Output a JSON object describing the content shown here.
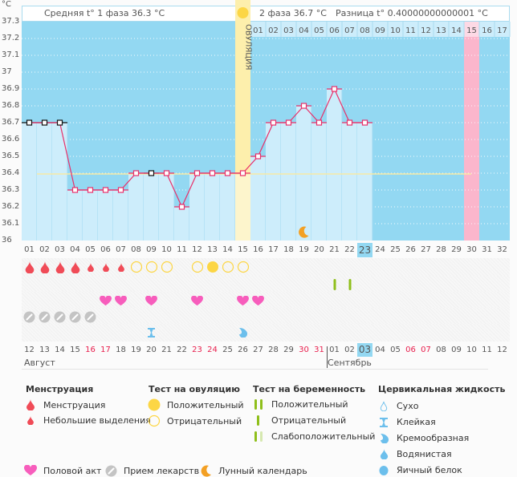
{
  "header": {
    "unit": "°C",
    "phase1_text": "Средняя t° 1 фаза 36.3 °C",
    "phase2_text": "2 фаза 36.7 °C",
    "diff_text": "Разница t° 0.40000000000001 °C",
    "ovulation_label": "ОВУЛЯЦИЯ"
  },
  "colors": {
    "bg_dark": "#93d8f2",
    "bg_light": "#cdedfb",
    "line": "#e8306a",
    "ovulation": "#fdefac",
    "pink_day": "#fbb6cc",
    "coverline": "#f6eaa6",
    "today": "#93d8f2"
  },
  "chart_data": {
    "type": "line",
    "title": "",
    "ylabel": "°C",
    "ylim": [
      36.0,
      37.3
    ],
    "yticks": [
      "37.3",
      "37.2",
      "37.1",
      "37",
      "36.9",
      "36.8",
      "36.7",
      "36.6",
      "36.5",
      "36.4",
      "36.3",
      "36.2",
      "36.1",
      "36"
    ],
    "coverline": 36.4,
    "ovulation_day": 15,
    "pink_day": 30,
    "today_day": 23,
    "cycle_days": [
      "01",
      "02",
      "03",
      "04",
      "05",
      "06",
      "07",
      "08",
      "09",
      "10",
      "11",
      "12",
      "13",
      "14",
      "15",
      "16",
      "17",
      "18",
      "19",
      "20",
      "21",
      "22",
      "23",
      "24",
      "25",
      "26",
      "27",
      "28",
      "29",
      "30",
      "31",
      "32"
    ],
    "post_ovulation_days": [
      "01",
      "02",
      "03",
      "04",
      "05",
      "06",
      "07",
      "08",
      "09",
      "10",
      "11",
      "12",
      "13",
      "14",
      "15",
      "16",
      "17"
    ],
    "series": [
      {
        "name": "BBT",
        "x": [
          1,
          2,
          3,
          4,
          5,
          6,
          7,
          8,
          9,
          10,
          11,
          12,
          13,
          14,
          15,
          16,
          17,
          18,
          19,
          20,
          21,
          22,
          23
        ],
        "values": [
          36.7,
          36.7,
          36.7,
          36.3,
          36.3,
          36.3,
          36.3,
          36.4,
          36.4,
          36.4,
          36.2,
          36.4,
          36.4,
          36.4,
          36.4,
          36.5,
          36.7,
          36.7,
          36.8,
          36.7,
          36.9,
          36.7,
          36.7
        ],
        "black_markers": [
          1,
          2,
          3,
          9
        ]
      }
    ],
    "moon_day": 19
  },
  "rows": {
    "menstruation": {
      "heavy": [
        1,
        2,
        3,
        4
      ],
      "light": [
        5,
        6,
        7
      ]
    },
    "ovulation_test": {
      "negative": [
        8,
        9,
        10,
        12,
        14,
        15
      ],
      "positive": [
        13
      ]
    },
    "pregnancy_test": {
      "negative": [
        21,
        22
      ]
    },
    "intercourse": [
      6,
      7,
      9,
      12,
      15,
      16
    ],
    "medication": [
      1,
      2,
      3,
      4,
      5
    ],
    "cervical": {
      "sticky": [
        9
      ],
      "creamy": [
        15
      ]
    }
  },
  "calendar": {
    "dates": [
      "12",
      "13",
      "14",
      "15",
      "16",
      "17",
      "18",
      "19",
      "20",
      "21",
      "22",
      "23",
      "24",
      "25",
      "26",
      "27",
      "28",
      "29",
      "30",
      "31",
      "01",
      "02",
      "03",
      "04",
      "05",
      "06",
      "07",
      "08",
      "09",
      "10",
      "11",
      "12"
    ],
    "weekend_indices": [
      4,
      5,
      11,
      12,
      18,
      19,
      25,
      26
    ],
    "today_index": 22,
    "month1": "Август",
    "month2": "Сентябрь"
  },
  "legend": {
    "menstruation": {
      "title": "Менструация",
      "items": [
        "Менструация",
        "Небольшие выделения"
      ]
    },
    "ovulation_test": {
      "title": "Тест на овуляцию",
      "items": [
        "Положительный",
        "Отрицательный"
      ]
    },
    "pregnancy_test": {
      "title": "Тест на беременность",
      "items": [
        "Положительный",
        "Отрицательный",
        "Слабоположительный"
      ]
    },
    "cervical": {
      "title": "Цервикальная жидкость",
      "items": [
        "Сухо",
        "Клейкая",
        "Кремообразная",
        "Водянистая",
        "Яичный белок"
      ]
    },
    "other": [
      "Половой акт",
      "Прием лекарств",
      "Лунный календарь"
    ]
  }
}
